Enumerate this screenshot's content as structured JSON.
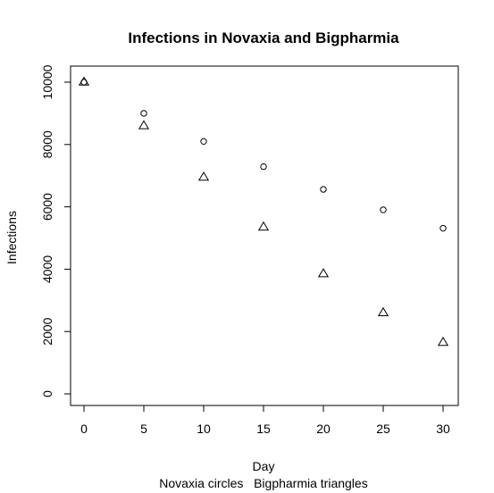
{
  "chart_data": {
    "type": "scatter",
    "title": "Infections in Novaxia and Bigpharmia",
    "xlabel": "Day",
    "ylabel": "Infections",
    "subtitle": "Novaxia circles   Bigpharmia triangles",
    "xlim": [
      0,
      30
    ],
    "ylim": [
      0,
      10000
    ],
    "x_ticks": [
      0,
      5,
      10,
      15,
      20,
      25,
      30
    ],
    "y_ticks": [
      0,
      2000,
      4000,
      6000,
      8000,
      10000
    ],
    "grid": false,
    "series": [
      {
        "marker": "circle",
        "x": [
          0,
          5,
          10,
          15,
          20,
          25,
          30
        ],
        "y": [
          10000,
          9000,
          8100,
          7290,
          6561,
          5905,
          5314
        ]
      },
      {
        "marker": "triangle",
        "x": [
          0,
          5,
          10,
          15,
          20,
          25,
          30
        ],
        "y": [
          10000,
          8600,
          6950,
          5350,
          3850,
          2600,
          1650
        ]
      }
    ]
  }
}
